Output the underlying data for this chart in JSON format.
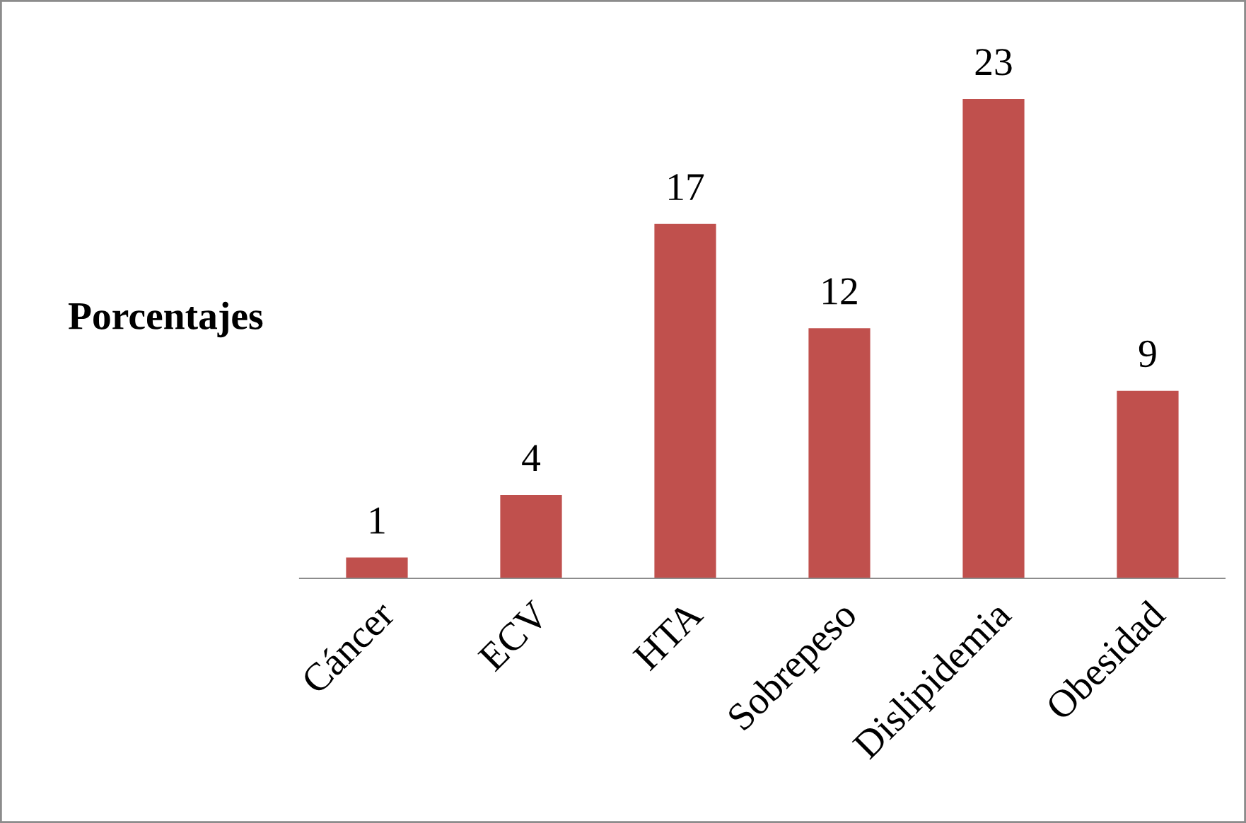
{
  "chart_data": {
    "type": "bar",
    "ylabel": "Porcentajes",
    "categories": [
      "Cáncer",
      "ECV",
      "HTA",
      "Sobrepeso",
      "Dislipidemia",
      "Obesidad"
    ],
    "values": [
      1,
      4,
      17,
      12,
      23,
      9
    ],
    "color": "#c0504d",
    "data_labels": true,
    "grid": false,
    "tick_labels": "x"
  }
}
